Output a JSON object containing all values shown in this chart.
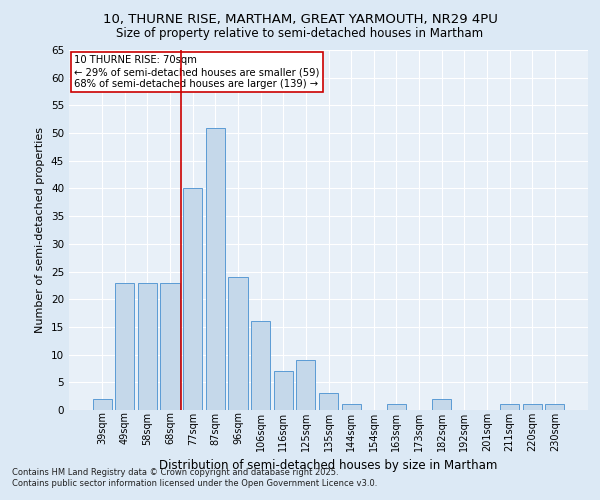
{
  "title_line1": "10, THURNE RISE, MARTHAM, GREAT YARMOUTH, NR29 4PU",
  "title_line2": "Size of property relative to semi-detached houses in Martham",
  "xlabel": "Distribution of semi-detached houses by size in Martham",
  "ylabel": "Number of semi-detached properties",
  "categories": [
    "39sqm",
    "49sqm",
    "58sqm",
    "68sqm",
    "77sqm",
    "87sqm",
    "96sqm",
    "106sqm",
    "116sqm",
    "125sqm",
    "135sqm",
    "144sqm",
    "154sqm",
    "163sqm",
    "173sqm",
    "182sqm",
    "192sqm",
    "201sqm",
    "211sqm",
    "220sqm",
    "230sqm"
  ],
  "values": [
    2,
    23,
    23,
    23,
    40,
    51,
    24,
    16,
    7,
    9,
    3,
    1,
    0,
    1,
    0,
    2,
    0,
    0,
    1,
    1,
    1
  ],
  "bar_color": "#c5d8ea",
  "bar_edge_color": "#5b9bd5",
  "vline_x_index": 3.5,
  "annotation_title": "10 THURNE RISE: 70sqm",
  "annotation_line1": "← 29% of semi-detached houses are smaller (59)",
  "annotation_line2": "68% of semi-detached houses are larger (139) →",
  "annotation_box_color": "#ffffff",
  "annotation_box_edge": "#cc0000",
  "vline_color": "#cc0000",
  "ylim": [
    0,
    65
  ],
  "yticks": [
    0,
    5,
    10,
    15,
    20,
    25,
    30,
    35,
    40,
    45,
    50,
    55,
    60,
    65
  ],
  "footer_line1": "Contains HM Land Registry data © Crown copyright and database right 2025.",
  "footer_line2": "Contains public sector information licensed under the Open Government Licence v3.0.",
  "bg_color": "#dce9f5",
  "plot_bg_color": "#e8f0f8"
}
